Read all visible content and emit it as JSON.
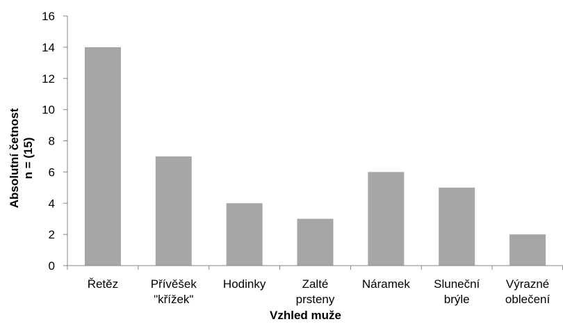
{
  "chart_data": {
    "type": "bar",
    "categories": [
      [
        "Řetěz"
      ],
      [
        "Přívěšek",
        "\"křížek\""
      ],
      [
        "Hodinky"
      ],
      [
        "Zalté",
        "prsteny"
      ],
      [
        "Náramek"
      ],
      [
        "Sluneční",
        "brýle"
      ],
      [
        "Výrazné",
        "oblečení"
      ]
    ],
    "values": [
      14,
      7,
      4,
      3,
      6,
      5,
      2
    ],
    "xlabel": "Vzhled muže",
    "ylabel": [
      "Absolutní četnost",
      "n = (15)"
    ],
    "ylim": [
      0,
      16
    ],
    "yticks": [
      0,
      2,
      4,
      6,
      8,
      10,
      12,
      14,
      16
    ],
    "grid": false,
    "legend": "none",
    "bar_color": "#a6a6a6",
    "axis_color": "#868686"
  }
}
